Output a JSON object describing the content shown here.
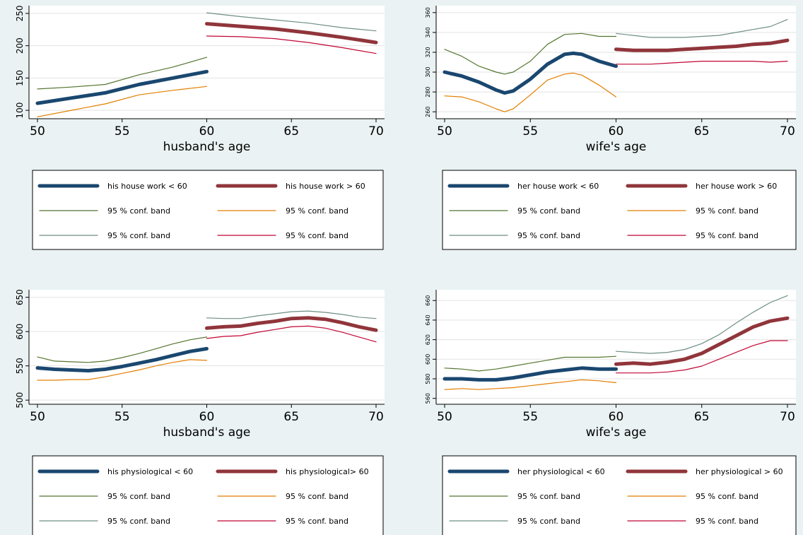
{
  "colors": {
    "background": "#eaf2f3",
    "navy": "#1a476f",
    "maroon": "#90353b",
    "dark_green": "#55752f",
    "orange": "#e37e00",
    "gray_green": "#6e8e84",
    "crimson": "#c10534",
    "grid": "#e3e3e3"
  },
  "chart_data": [
    {
      "type": "line",
      "xlabel": "husband's age",
      "ylabel": "",
      "xlim": [
        50,
        70
      ],
      "ylim": [
        87,
        262
      ],
      "xticks": [
        50,
        55,
        60,
        65,
        70
      ],
      "yticks": [
        100,
        150,
        200,
        250
      ],
      "grid": true,
      "legend_position": "bottom",
      "series": [
        {
          "name": "his house work < 60",
          "role": "estimate",
          "color": "#1a476f",
          "x": [
            50,
            52,
            54,
            56,
            58,
            60
          ],
          "y": [
            111,
            119,
            127,
            140,
            150,
            160
          ]
        },
        {
          "name": "his house work > 60",
          "role": "estimate",
          "color": "#90353b",
          "x": [
            60,
            62,
            64,
            66,
            68,
            70
          ],
          "y": [
            234,
            230,
            226,
            220,
            213,
            205
          ]
        },
        {
          "name": "95 % conf. band",
          "role": "band",
          "color": "#55752f",
          "x": [
            50,
            52,
            54,
            56,
            58,
            60
          ],
          "y": [
            133,
            136,
            140,
            155,
            167,
            182
          ]
        },
        {
          "name": "95 % conf. band",
          "role": "band",
          "color": "#e37e00",
          "x": [
            50,
            52,
            54,
            56,
            58,
            60
          ],
          "y": [
            90,
            100,
            110,
            124,
            131,
            137
          ]
        },
        {
          "name": "95 % conf. band",
          "role": "band",
          "color": "#6e8e84",
          "x": [
            60,
            62,
            64,
            66,
            68,
            70
          ],
          "y": [
            251,
            245,
            240,
            235,
            228,
            223
          ]
        },
        {
          "name": "95 % conf. band",
          "role": "band",
          "color": "#c10534",
          "x": [
            60,
            62,
            64,
            66,
            68,
            70
          ],
          "y": [
            215,
            214,
            211,
            205,
            197,
            188
          ]
        }
      ]
    },
    {
      "type": "line",
      "xlabel": "wife's age",
      "ylabel": "",
      "xlim": [
        50,
        70
      ],
      "ylim": [
        253,
        367
      ],
      "xticks": [
        50,
        55,
        60,
        65,
        70
      ],
      "yticks": [
        260,
        280,
        300,
        320,
        340,
        360
      ],
      "grid": true,
      "legend_position": "bottom",
      "series": [
        {
          "name": "her house work < 60",
          "role": "estimate",
          "color": "#1a476f",
          "x": [
            50,
            51,
            52,
            53,
            53.5,
            54,
            55,
            56,
            57,
            57.5,
            58,
            59,
            60
          ],
          "y": [
            300,
            296,
            290,
            282,
            279,
            281,
            293,
            308,
            318,
            319,
            318,
            311,
            306
          ]
        },
        {
          "name": "her house work > 60",
          "role": "estimate",
          "color": "#90353b",
          "x": [
            60,
            61,
            62,
            63,
            64,
            65,
            66,
            67,
            68,
            69,
            70
          ],
          "y": [
            323,
            322,
            322,
            322,
            323,
            324,
            325,
            326,
            328,
            329,
            332
          ]
        },
        {
          "name": "95 % conf. band",
          "role": "band",
          "color": "#55752f",
          "x": [
            50,
            51,
            52,
            53,
            53.5,
            54,
            55,
            56,
            57,
            58,
            59,
            60
          ],
          "y": [
            323,
            316,
            306,
            300,
            298,
            300,
            311,
            328,
            338,
            339,
            336,
            336
          ]
        },
        {
          "name": "95 % conf. band",
          "role": "band",
          "color": "#e37e00",
          "x": [
            50,
            51,
            52,
            53,
            53.5,
            54,
            55,
            56,
            57,
            57.5,
            58,
            59,
            60
          ],
          "y": [
            276,
            275,
            270,
            263,
            260,
            263,
            277,
            292,
            298,
            299,
            297,
            287,
            275
          ]
        },
        {
          "name": "95 % conf. band",
          "role": "band",
          "color": "#6e8e84",
          "x": [
            60,
            61,
            62,
            63,
            64,
            65,
            66,
            67,
            68,
            69,
            70
          ],
          "y": [
            339,
            337,
            335,
            335,
            335,
            336,
            337,
            340,
            343,
            346,
            353
          ]
        },
        {
          "name": "95 % conf. band",
          "role": "band",
          "color": "#c10534",
          "x": [
            60,
            61,
            62,
            63,
            64,
            65,
            66,
            67,
            68,
            69,
            70
          ],
          "y": [
            308,
            308,
            308,
            309,
            310,
            311,
            311,
            311,
            311,
            310,
            311
          ]
        }
      ]
    },
    {
      "type": "line",
      "xlabel": "husband's age",
      "ylabel": "",
      "xlim": [
        50,
        70
      ],
      "ylim": [
        494,
        661
      ],
      "xticks": [
        50,
        55,
        60,
        65,
        70
      ],
      "yticks": [
        500,
        550,
        600,
        650
      ],
      "grid": true,
      "legend_position": "bottom",
      "series": [
        {
          "name": "his physiological < 60",
          "role": "estimate",
          "color": "#1a476f",
          "x": [
            50,
            51,
            52,
            53,
            54,
            55,
            56,
            57,
            58,
            59,
            60
          ],
          "y": [
            547,
            545,
            544,
            543,
            545,
            549,
            554,
            559,
            565,
            571,
            575
          ]
        },
        {
          "name": "his physiological> 60",
          "role": "estimate",
          "color": "#90353b",
          "x": [
            60,
            61,
            62,
            63,
            64,
            65,
            66,
            67,
            68,
            69,
            70
          ],
          "y": [
            605,
            607,
            608,
            612,
            615,
            619,
            620,
            618,
            613,
            607,
            602
          ]
        },
        {
          "name": "95 % conf. band",
          "role": "band",
          "color": "#55752f",
          "x": [
            50,
            51,
            52,
            53,
            54,
            55,
            56,
            57,
            58,
            59,
            60
          ],
          "y": [
            563,
            557,
            556,
            555,
            557,
            562,
            568,
            575,
            582,
            588,
            592
          ]
        },
        {
          "name": "95 % conf. band",
          "role": "band",
          "color": "#e37e00",
          "x": [
            50,
            51,
            52,
            53,
            54,
            55,
            56,
            57,
            58,
            59,
            60
          ],
          "y": [
            529,
            529,
            530,
            530,
            534,
            539,
            544,
            550,
            555,
            559,
            558
          ]
        },
        {
          "name": "95 % conf. band",
          "role": "band",
          "color": "#6e8e84",
          "x": [
            60,
            61,
            62,
            63,
            64,
            65,
            66,
            67,
            68,
            69,
            70
          ],
          "y": [
            620,
            619,
            619,
            623,
            626,
            629,
            630,
            628,
            625,
            621,
            619
          ]
        },
        {
          "name": "95 % conf. band",
          "role": "band",
          "color": "#c10534",
          "x": [
            60,
            61,
            62,
            63,
            64,
            65,
            66,
            67,
            68,
            69,
            70
          ],
          "y": [
            590,
            593,
            594,
            599,
            603,
            607,
            608,
            605,
            599,
            592,
            585
          ]
        }
      ]
    },
    {
      "type": "line",
      "xlabel": "wife's age",
      "ylabel": "",
      "xlim": [
        50,
        70
      ],
      "ylim": [
        554,
        671
      ],
      "xticks": [
        50,
        55,
        60,
        65,
        70
      ],
      "yticks": [
        560,
        580,
        600,
        620,
        640,
        660
      ],
      "grid": true,
      "legend_position": "bottom",
      "series": [
        {
          "name": "her physiological < 60",
          "role": "estimate",
          "color": "#1a476f",
          "x": [
            50,
            51,
            52,
            53,
            54,
            55,
            56,
            57,
            58,
            59,
            60
          ],
          "y": [
            580,
            580,
            579,
            579,
            581,
            584,
            587,
            589,
            591,
            590,
            590
          ]
        },
        {
          "name": "her physiological > 60",
          "role": "estimate",
          "color": "#90353b",
          "x": [
            60,
            61,
            62,
            63,
            64,
            65,
            66,
            67,
            68,
            69,
            70
          ],
          "y": [
            595,
            596,
            595,
            597,
            600,
            606,
            615,
            624,
            633,
            639,
            642
          ]
        },
        {
          "name": "95 % conf. band",
          "role": "band",
          "color": "#55752f",
          "x": [
            50,
            51,
            52,
            53,
            54,
            55,
            56,
            57,
            58,
            59,
            60
          ],
          "y": [
            591,
            590,
            588,
            590,
            593,
            596,
            599,
            602,
            602,
            602,
            603
          ]
        },
        {
          "name": "95 % conf. band",
          "role": "band",
          "color": "#e37e00",
          "x": [
            50,
            51,
            52,
            53,
            54,
            55,
            56,
            57,
            58,
            59,
            60
          ],
          "y": [
            569,
            570,
            569,
            570,
            571,
            573,
            575,
            577,
            579,
            578,
            576
          ]
        },
        {
          "name": "95 % conf. band",
          "role": "band",
          "color": "#6e8e84",
          "x": [
            60,
            61,
            62,
            63,
            64,
            65,
            66,
            67,
            68,
            69,
            70
          ],
          "y": [
            608,
            607,
            606,
            607,
            610,
            616,
            625,
            637,
            648,
            658,
            665
          ]
        },
        {
          "name": "95 % conf. band",
          "role": "band",
          "color": "#c10534",
          "x": [
            60,
            61,
            62,
            63,
            64,
            65,
            66,
            67,
            68,
            69,
            70
          ],
          "y": [
            586,
            586,
            586,
            587,
            589,
            593,
            600,
            607,
            614,
            619,
            619
          ]
        }
      ]
    }
  ]
}
